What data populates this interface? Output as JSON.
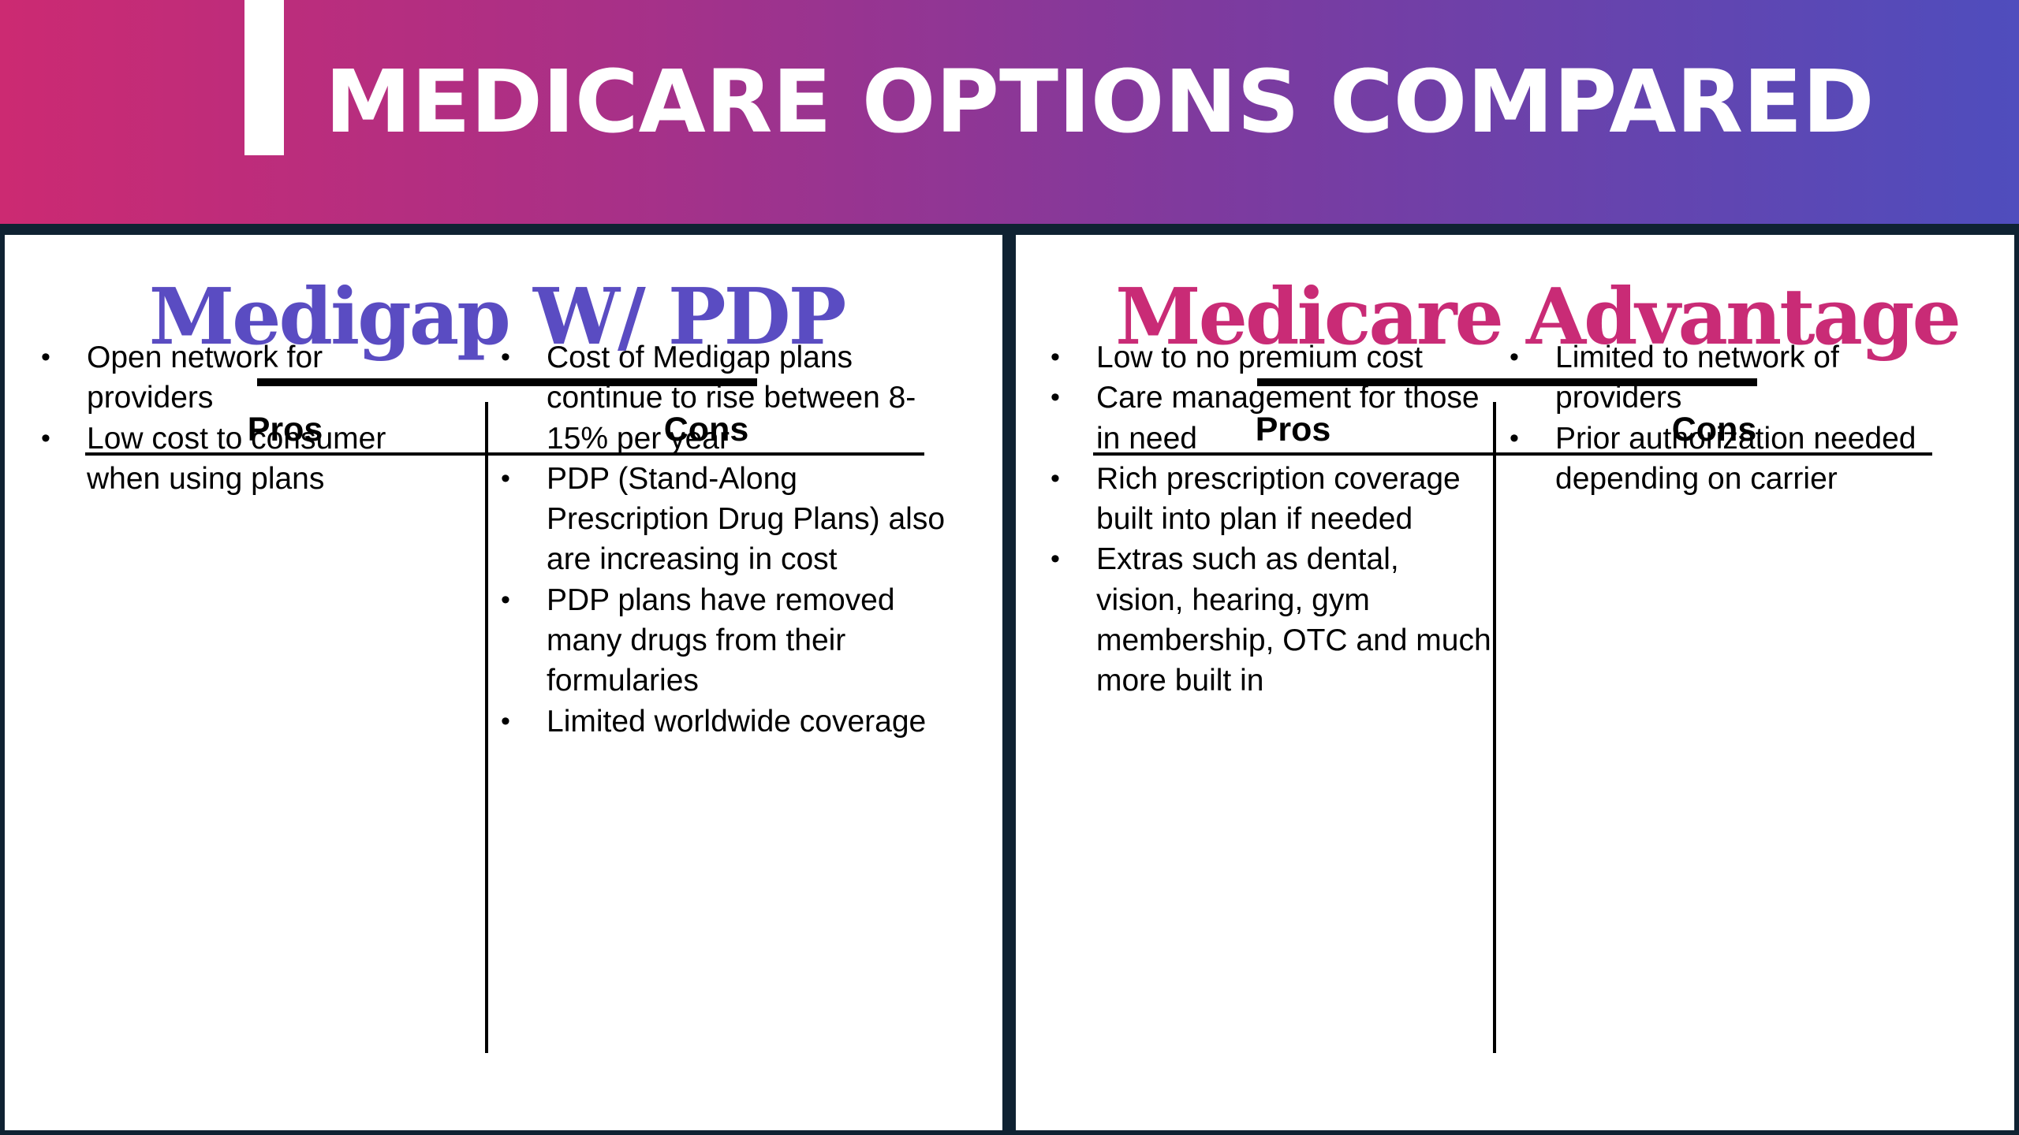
{
  "header": {
    "title": "MEDICARE OPTIONS COMPARED"
  },
  "panels": [
    {
      "title": "Medigap W/ PDP",
      "title_color": "#5a4cc2",
      "pros_label": "Pros",
      "cons_label": "Cons",
      "pros": [
        "Open network for providers",
        "Low cost to consumer when using plans"
      ],
      "cons": [
        "Cost of Medigap plans continue to rise between 8-15% per year",
        "PDP (Stand-Along Prescription Drug Plans) also are increasing in cost",
        "PDP plans have removed many drugs from their formularies",
        "Limited worldwide coverage"
      ]
    },
    {
      "title": "Medicare Advantage",
      "title_color": "#c92b76",
      "pros_label": "Pros",
      "cons_label": "Cons",
      "pros": [
        "Low to no premium cost",
        "Care management for those in need",
        "Rich prescription coverage built into plan if needed",
        "Extras such as dental, vision, hearing, gym membership, OTC and much more built in"
      ],
      "cons": [
        "Limited to network of providers",
        "Prior authorization needed depending on carrier"
      ]
    }
  ]
}
